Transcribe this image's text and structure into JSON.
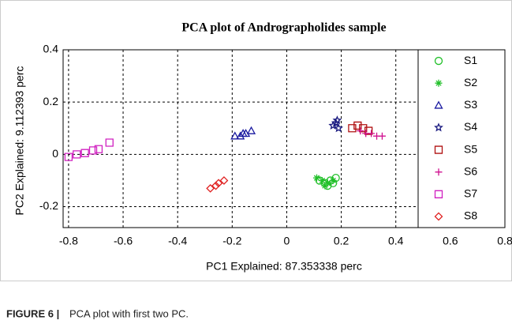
{
  "chart_data": {
    "type": "scatter",
    "title": "PCA plot of Andrographolides sample",
    "xlabel": "PC1 Explained: 87.353338 perc",
    "ylabel": "PC2 Explained: 9.112393 perc",
    "caption_label": "FIGURE 6 |",
    "caption": "PCA plot with first two PC.",
    "xlim": [
      -0.82,
      0.8
    ],
    "ylim": [
      -0.28,
      0.4
    ],
    "xticks": [
      -0.8,
      -0.6,
      -0.4,
      -0.2,
      0,
      0.2,
      0.4,
      0.6,
      0.8
    ],
    "yticks": [
      -0.2,
      0,
      0.2,
      0.4
    ],
    "grid": true,
    "legend": "right",
    "series": [
      {
        "name": "S1",
        "color": "#22c02a",
        "marker": "circle",
        "x": [
          0.12,
          0.14,
          0.16,
          0.18,
          0.15,
          0.17
        ],
        "y": [
          -0.1,
          -0.11,
          -0.1,
          -0.09,
          -0.12,
          -0.11
        ]
      },
      {
        "name": "S2",
        "color": "#22c02a",
        "marker": "asterisk",
        "x": [
          0.11,
          0.13,
          0.15,
          0.17,
          0.14
        ],
        "y": [
          -0.09,
          -0.1,
          -0.11,
          -0.1,
          -0.12
        ]
      },
      {
        "name": "S3",
        "color": "#1a1aa0",
        "marker": "triangle",
        "x": [
          -0.19,
          -0.17,
          -0.15,
          -0.13,
          -0.16
        ],
        "y": [
          0.07,
          0.07,
          0.08,
          0.09,
          0.08
        ]
      },
      {
        "name": "S4",
        "color": "#1a1a80",
        "marker": "star",
        "x": [
          0.17,
          0.18,
          0.19,
          0.185
        ],
        "y": [
          0.11,
          0.12,
          0.1,
          0.13
        ]
      },
      {
        "name": "S5",
        "color": "#b01010",
        "marker": "square",
        "x": [
          0.24,
          0.26,
          0.28,
          0.3
        ],
        "y": [
          0.1,
          0.11,
          0.1,
          0.09
        ]
      },
      {
        "name": "S6",
        "color": "#d01090",
        "marker": "plus",
        "x": [
          0.27,
          0.29,
          0.31,
          0.33,
          0.35
        ],
        "y": [
          0.09,
          0.08,
          0.08,
          0.07,
          0.07
        ]
      },
      {
        "name": "S7",
        "color": "#d020c0",
        "marker": "square",
        "x": [
          -0.8,
          -0.77,
          -0.74,
          -0.71,
          -0.69,
          -0.65
        ],
        "y": [
          -0.01,
          0.0,
          0.005,
          0.015,
          0.02,
          0.045
        ]
      },
      {
        "name": "S8",
        "color": "#e02020",
        "marker": "diamond",
        "x": [
          -0.28,
          -0.26,
          -0.25,
          -0.23
        ],
        "y": [
          -0.13,
          -0.12,
          -0.11,
          -0.1
        ]
      }
    ]
  }
}
